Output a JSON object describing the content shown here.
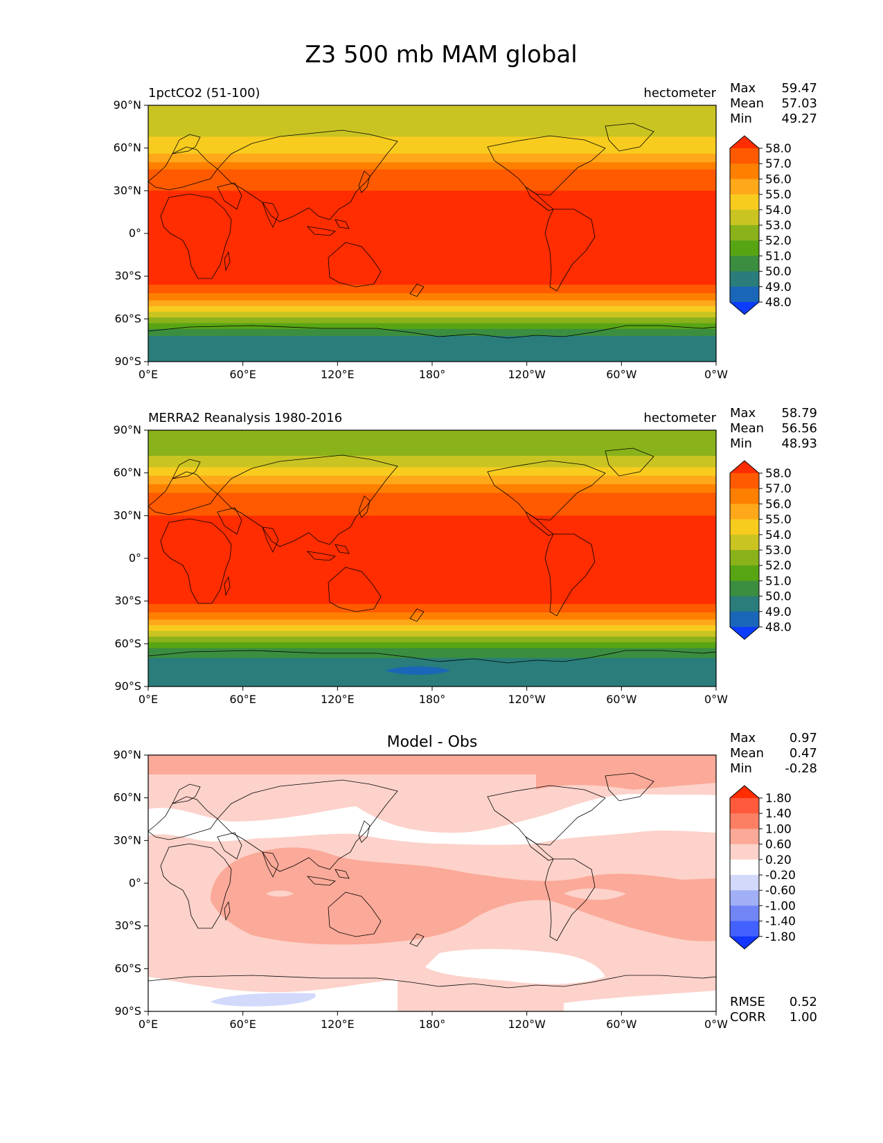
{
  "figure": {
    "title": "Z3 500 mb MAM global"
  },
  "chart_data": [
    {
      "type": "heatmap",
      "panel": "test",
      "title_left": "1pctCO2 (51-100)",
      "title_right": "hectometer",
      "stats": [
        {
          "label": "Max",
          "value": "59.47"
        },
        {
          "label": "Mean",
          "value": "57.03"
        },
        {
          "label": "Min",
          "value": "49.27"
        }
      ],
      "x_ticks": [
        "0°E",
        "60°E",
        "120°E",
        "180°",
        "120°W",
        "60°W",
        "0°W"
      ],
      "y_ticks": [
        "90°N",
        "60°N",
        "30°N",
        "0°",
        "30°S",
        "60°S",
        "90°S"
      ],
      "xlim": [
        0,
        360
      ],
      "ylim": [
        -90,
        90
      ],
      "colorbar_levels": [
        "58.0",
        "57.0",
        "56.0",
        "55.0",
        "54.0",
        "53.0",
        "52.0",
        "51.0",
        "50.0",
        "49.0",
        "48.0"
      ],
      "colorbar_colors": [
        "#ff2d00",
        "#ff5a00",
        "#ff8000",
        "#ffa81a",
        "#f7cc1f",
        "#c9c422",
        "#8ab21b",
        "#58a514",
        "#3b8e3f",
        "#2a7d7a",
        "#1a66b8",
        "#0c3dff"
      ],
      "zonal_bands": [
        {
          "lat": [
            78,
            90
          ],
          "level": "53.0-54.0"
        },
        {
          "lat": [
            68,
            78
          ],
          "level": "53.0-54.0"
        },
        {
          "lat": [
            62,
            68
          ],
          "level": "54.0-55.0"
        },
        {
          "lat": [
            56,
            62
          ],
          "level": "54.0-55.0"
        },
        {
          "lat": [
            50,
            56
          ],
          "level": "55.0-56.0"
        },
        {
          "lat": [
            45,
            50
          ],
          "level": "56.0-57.0"
        },
        {
          "lat": [
            40,
            45
          ],
          "level": "57.0-58.0"
        },
        {
          "lat": [
            30,
            40
          ],
          "level": "57.0-58.0"
        },
        {
          "lat": [
            -36,
            30
          ],
          "level": ">58.0"
        },
        {
          "lat": [
            -42,
            -36
          ],
          "level": "57.0-58.0"
        },
        {
          "lat": [
            -47,
            -42
          ],
          "level": "56.0-57.0"
        },
        {
          "lat": [
            -51,
            -47
          ],
          "level": "55.0-56.0"
        },
        {
          "lat": [
            -55,
            -51
          ],
          "level": "54.0-55.0"
        },
        {
          "lat": [
            -59,
            -55
          ],
          "level": "53.0-54.0"
        },
        {
          "lat": [
            -63,
            -59
          ],
          "level": "52.0-53.0"
        },
        {
          "lat": [
            -67,
            -63
          ],
          "level": "51.0-52.0"
        },
        {
          "lat": [
            -72,
            -67
          ],
          "level": "50.0-51.0"
        },
        {
          "lat": [
            -90,
            -72
          ],
          "level": "49.0-50.0"
        }
      ]
    },
    {
      "type": "heatmap",
      "panel": "reference",
      "title_left": "MERRA2 Reanalysis 1980-2016",
      "title_right": "hectometer",
      "stats": [
        {
          "label": "Max",
          "value": "58.79"
        },
        {
          "label": "Mean",
          "value": "56.56"
        },
        {
          "label": "Min",
          "value": "48.93"
        }
      ],
      "x_ticks": [
        "0°E",
        "60°E",
        "120°E",
        "180°",
        "120°W",
        "60°W",
        "0°W"
      ],
      "y_ticks": [
        "90°N",
        "60°N",
        "30°N",
        "0°",
        "30°S",
        "60°S",
        "90°S"
      ],
      "xlim": [
        0,
        360
      ],
      "ylim": [
        -90,
        90
      ],
      "colorbar_levels": [
        "58.0",
        "57.0",
        "56.0",
        "55.0",
        "54.0",
        "53.0",
        "52.0",
        "51.0",
        "50.0",
        "49.0",
        "48.0"
      ],
      "colorbar_colors": [
        "#ff2d00",
        "#ff5a00",
        "#ff8000",
        "#ffa81a",
        "#f7cc1f",
        "#c9c422",
        "#8ab21b",
        "#58a514",
        "#3b8e3f",
        "#2a7d7a",
        "#1a66b8",
        "#0c3dff"
      ],
      "zonal_bands": [
        {
          "lat": [
            82,
            90
          ],
          "level": "52.0-53.0"
        },
        {
          "lat": [
            72,
            82
          ],
          "level": "52.0-53.0"
        },
        {
          "lat": [
            64,
            72
          ],
          "level": "53.0-54.0"
        },
        {
          "lat": [
            58,
            64
          ],
          "level": "54.0-55.0"
        },
        {
          "lat": [
            52,
            58
          ],
          "level": "55.0-56.0"
        },
        {
          "lat": [
            46,
            52
          ],
          "level": "56.0-57.0"
        },
        {
          "lat": [
            38,
            46
          ],
          "level": "57.0-58.0"
        },
        {
          "lat": [
            30,
            38
          ],
          "level": "57.0-58.0"
        },
        {
          "lat": [
            -32,
            30
          ],
          "level": ">58.0"
        },
        {
          "lat": [
            -38,
            -32
          ],
          "level": "57.0-58.0"
        },
        {
          "lat": [
            -43,
            -38
          ],
          "level": "56.0-57.0"
        },
        {
          "lat": [
            -47,
            -43
          ],
          "level": "55.0-56.0"
        },
        {
          "lat": [
            -51,
            -47
          ],
          "level": "54.0-55.0"
        },
        {
          "lat": [
            -55,
            -51
          ],
          "level": "53.0-54.0"
        },
        {
          "lat": [
            -59,
            -55
          ],
          "level": "52.0-53.0"
        },
        {
          "lat": [
            -63,
            -59
          ],
          "level": "51.0-52.0"
        },
        {
          "lat": [
            -70,
            -63
          ],
          "level": "50.0-51.0"
        },
        {
          "lat": [
            -90,
            -70
          ],
          "level": "49.0-50.0"
        }
      ]
    },
    {
      "type": "heatmap",
      "panel": "difference",
      "title_center": "Model - Obs",
      "stats": [
        {
          "label": "Max",
          "value": "0.97"
        },
        {
          "label": "Mean",
          "value": "0.47"
        },
        {
          "label": "Min",
          "value": "-0.28"
        }
      ],
      "bottom_stats": [
        {
          "label": "RMSE",
          "value": "0.52"
        },
        {
          "label": "CORR",
          "value": "1.00"
        }
      ],
      "x_ticks": [
        "0°E",
        "60°E",
        "120°E",
        "180°",
        "120°W",
        "60°W",
        "0°W"
      ],
      "y_ticks": [
        "90°N",
        "60°N",
        "30°N",
        "0°",
        "30°S",
        "60°S",
        "90°S"
      ],
      "xlim": [
        0,
        360
      ],
      "ylim": [
        -90,
        90
      ],
      "colorbar_levels": [
        "1.80",
        "1.40",
        "1.00",
        "0.60",
        "0.20",
        "-0.20",
        "-0.60",
        "-1.00",
        "-1.40",
        "-1.80"
      ],
      "colorbar_colors": [
        "#ff2d00",
        "#ff5a3c",
        "#fd7f63",
        "#fba998",
        "#fcd2ca",
        "#ffffff",
        "#d2d9fb",
        "#a1b0f6",
        "#7185f6",
        "#4361ff",
        "#1236ff"
      ]
    }
  ]
}
